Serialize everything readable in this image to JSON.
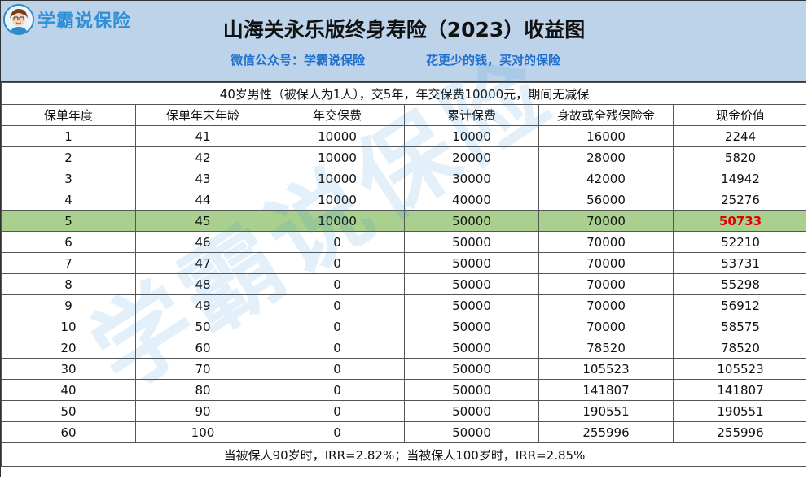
{
  "brand": {
    "logo_text": "学霸说保险",
    "avatar_icon": "avatar-icon"
  },
  "title": "山海关永乐版终身寿险（2023）收益图",
  "subtitle_left": "微信公众号：学霸说保险",
  "subtitle_right": "花更少的钱，买对的保险",
  "caption": "40岁男性（被保人为1人），交5年，年交保费10000元，期间无减保",
  "columns": [
    "保单年度",
    "保单年末年龄",
    "年交保费",
    "累计保费",
    "身故或全残保险金",
    "现金价值"
  ],
  "rows": [
    [
      "1",
      "41",
      "10000",
      "10000",
      "16000",
      "2244"
    ],
    [
      "2",
      "42",
      "10000",
      "20000",
      "28000",
      "5820"
    ],
    [
      "3",
      "43",
      "10000",
      "30000",
      "42000",
      "14942"
    ],
    [
      "4",
      "44",
      "10000",
      "40000",
      "56000",
      "25276"
    ],
    [
      "5",
      "45",
      "10000",
      "50000",
      "70000",
      "50733"
    ],
    [
      "6",
      "46",
      "0",
      "50000",
      "70000",
      "52210"
    ],
    [
      "7",
      "47",
      "0",
      "50000",
      "70000",
      "53731"
    ],
    [
      "8",
      "48",
      "0",
      "50000",
      "70000",
      "55298"
    ],
    [
      "9",
      "49",
      "0",
      "50000",
      "70000",
      "56912"
    ],
    [
      "10",
      "50",
      "0",
      "50000",
      "70000",
      "58575"
    ],
    [
      "20",
      "60",
      "0",
      "50000",
      "78520",
      "78520"
    ],
    [
      "30",
      "70",
      "0",
      "50000",
      "105523",
      "105523"
    ],
    [
      "40",
      "80",
      "0",
      "50000",
      "141807",
      "141807"
    ],
    [
      "50",
      "90",
      "0",
      "50000",
      "190551",
      "190551"
    ],
    [
      "60",
      "100",
      "0",
      "50000",
      "255996",
      "255996"
    ]
  ],
  "highlight_row": 4,
  "highlight_color": "#a9d08e",
  "highlight_value_color": "#e00000",
  "header_color": "#bcd3ea",
  "footer": "当被保人90岁时，IRR=2.82%；当被保人100岁时，IRR=2.85%",
  "watermark": "学霸说保险"
}
